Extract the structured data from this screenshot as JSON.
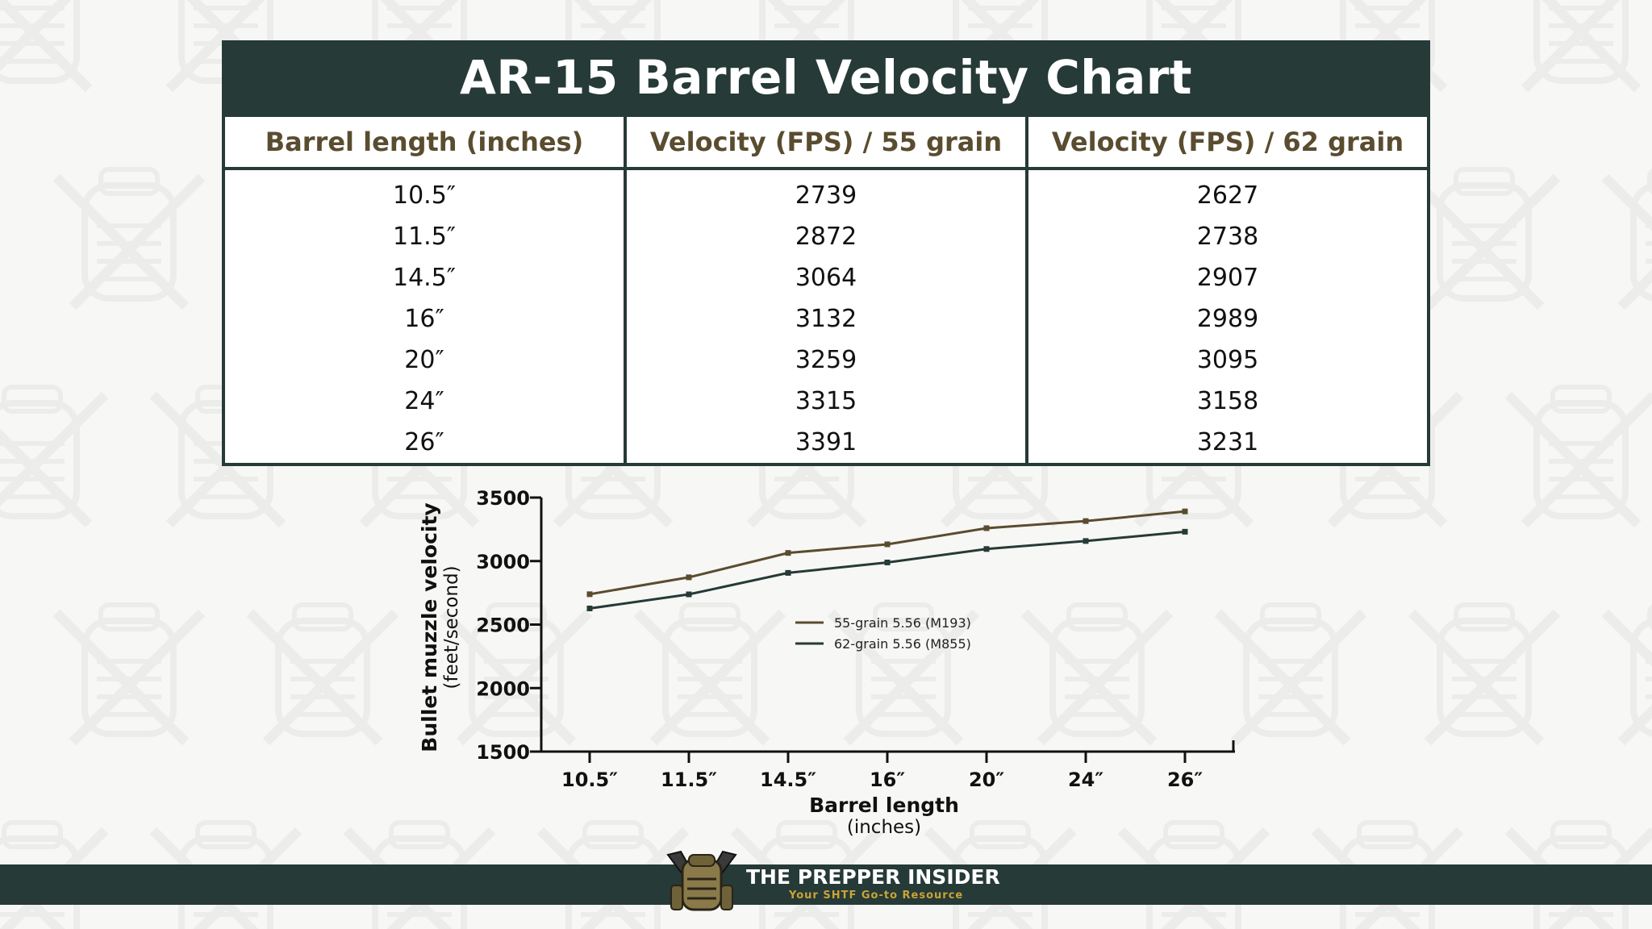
{
  "title": "AR-15 Barrel Velocity Chart",
  "table": {
    "headers": [
      "Barrel length (inches)",
      "Velocity (FPS) / 55 grain",
      "Velocity (FPS) / 62 grain"
    ],
    "rows": [
      [
        "10.5″",
        "2739",
        "2627"
      ],
      [
        "11.5″",
        "2872",
        "2738"
      ],
      [
        "14.5″",
        "3064",
        "2907"
      ],
      [
        "16″",
        "3132",
        "2989"
      ],
      [
        "20″",
        "3259",
        "3095"
      ],
      [
        "24″",
        "3315",
        "3158"
      ],
      [
        "26″",
        "3391",
        "3231"
      ]
    ]
  },
  "chart_data": {
    "type": "line",
    "categories": [
      "10.5″",
      "11.5″",
      "14.5″",
      "16″",
      "20″",
      "24″",
      "26″"
    ],
    "series": [
      {
        "name": "55-grain 5.56 (M193)",
        "values": [
          2739,
          2872,
          3064,
          3132,
          3259,
          3315,
          3391
        ],
        "color": "#5a4c2f"
      },
      {
        "name": "62-grain 5.56 (M855)",
        "values": [
          2627,
          2738,
          2907,
          2989,
          3095,
          3158,
          3231
        ],
        "color": "#263a37"
      }
    ],
    "xlabel": "Barrel length",
    "xlabel_sub": "(inches)",
    "ylabel": "Bullet muzzle velocity",
    "ylabel_sub": "(feet/second)",
    "ylim": [
      1500,
      3500
    ],
    "yticks": [
      "3500",
      "3000",
      "2500",
      "2000",
      "1500"
    ],
    "grid": false,
    "legend_position": "center"
  },
  "footer": {
    "brand": "THE PREPPER INSIDER",
    "tagline": "Your SHTF Go-to Resource"
  },
  "colors": {
    "primary": "#263a37",
    "accent": "#5a4c2f",
    "tagline": "#c9a437"
  }
}
